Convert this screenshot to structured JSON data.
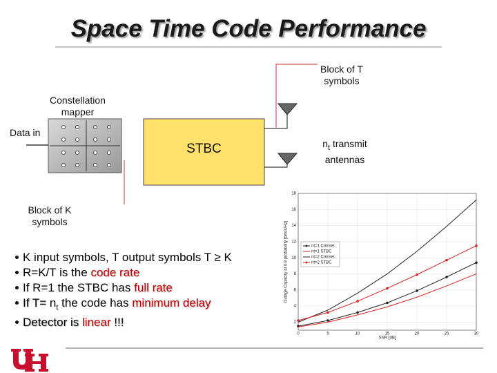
{
  "slide": {
    "title": "Space Time Code Performance",
    "diagram": {
      "block_t": "Block of T symbols",
      "mapper": "Constellation mapper",
      "data_in": "Data in",
      "stbc": "STBC",
      "antennas": {
        "n": "n",
        "sub": "t",
        "text": "transmit antennas"
      },
      "block_k": "Block of K symbols"
    },
    "bullets": [
      [
        {
          "text": "K input symbols, T output symbols T ≥ K",
          "style": "plain"
        }
      ],
      [
        {
          "text": "R=K/T is the ",
          "style": "plain"
        },
        {
          "text": "code rate",
          "style": "red"
        }
      ],
      [
        {
          "text": "If R=1 the STBC has ",
          "style": "plain"
        },
        {
          "text": "full rate",
          "style": "red"
        }
      ],
      [
        {
          "text": "If T= ",
          "style": "shadow"
        },
        {
          "text": "n",
          "style": "plain"
        },
        {
          "text": "t",
          "style": "sub"
        },
        {
          "text": " the code has ",
          "style": "plain"
        },
        {
          "text": "minimum delay",
          "style": "red"
        }
      ],
      [
        {
          "text": "Detector is ",
          "style": "shadow"
        },
        {
          "text": "linear",
          "style": "red"
        },
        {
          "text": " !!!",
          "style": "shadow"
        }
      ]
    ]
  },
  "chart_data": {
    "type": "line",
    "xlabel": "SNR [dB]",
    "ylabel": "Outage Capacity at 0.9 probability [bits/s/Hz]",
    "x": [
      0,
      5,
      10,
      15,
      20,
      25,
      30
    ],
    "series": [
      {
        "name": "nt=1 Coinsel",
        "color": "#222222",
        "marker": true,
        "values": [
          1.5,
          2.2,
          3.2,
          4.4,
          5.9,
          7.6,
          9.4
        ]
      },
      {
        "name": "nt=1 STBC",
        "color": "#d62020",
        "marker": false,
        "values": [
          1.4,
          2.0,
          2.9,
          3.9,
          5.1,
          6.5,
          8.0
        ]
      },
      {
        "name": "nt=2 Coinsel",
        "color": "#222222",
        "marker": false,
        "values": [
          2.0,
          3.5,
          5.6,
          8.0,
          10.8,
          13.9,
          17.2
        ]
      },
      {
        "name": "nt=2 STBC",
        "color": "#d62020",
        "marker": true,
        "values": [
          2.2,
          3.2,
          4.6,
          6.2,
          7.9,
          9.7,
          11.5
        ]
      }
    ],
    "xlim": [
      0,
      30
    ],
    "xticks": [
      0,
      5,
      10,
      15,
      20,
      25,
      30
    ],
    "ylim": [
      1,
      18
    ],
    "yticks": [
      2,
      4,
      6,
      8,
      10,
      12,
      14,
      16,
      18
    ],
    "grid": true,
    "legend": "upper-left"
  }
}
